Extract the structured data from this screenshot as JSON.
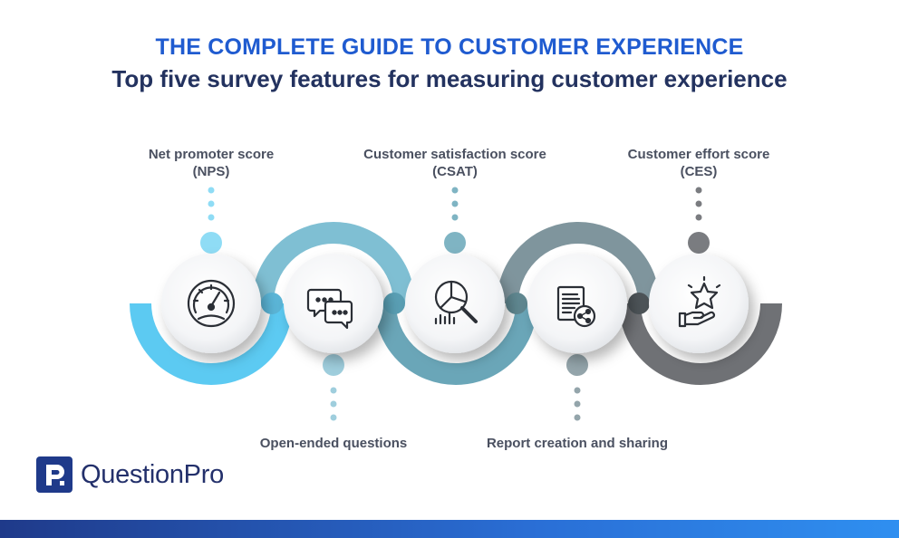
{
  "header": {
    "title": "THE COMPLETE GUIDE TO CUSTOMER EXPERIENCE",
    "subtitle": "Top five survey features for measuring customer experience"
  },
  "steps": [
    {
      "line1": "Net promoter score",
      "line2": "(NPS)",
      "icon": "gauge-icon"
    },
    {
      "line1": "Open-ended questions",
      "line2": "",
      "icon": "chat-bubbles-icon"
    },
    {
      "line1": "Customer satisfaction score",
      "line2": "(CSAT)",
      "icon": "pie-chart-search-icon"
    },
    {
      "line1": "Report creation and sharing",
      "line2": "",
      "icon": "report-share-icon"
    },
    {
      "line1": "Customer effort score",
      "line2": "(CES)",
      "icon": "star-hand-icon"
    }
  ],
  "colors": {
    "step1": "#5ccaf2",
    "step2": "#7fbfd3",
    "step3": "#6aa6b8",
    "step4": "#7f959d",
    "step5": "#6f7175",
    "title": "#1f5bd0",
    "subtitle": "#23325f"
  },
  "brand": {
    "name": "QuestionPro"
  }
}
